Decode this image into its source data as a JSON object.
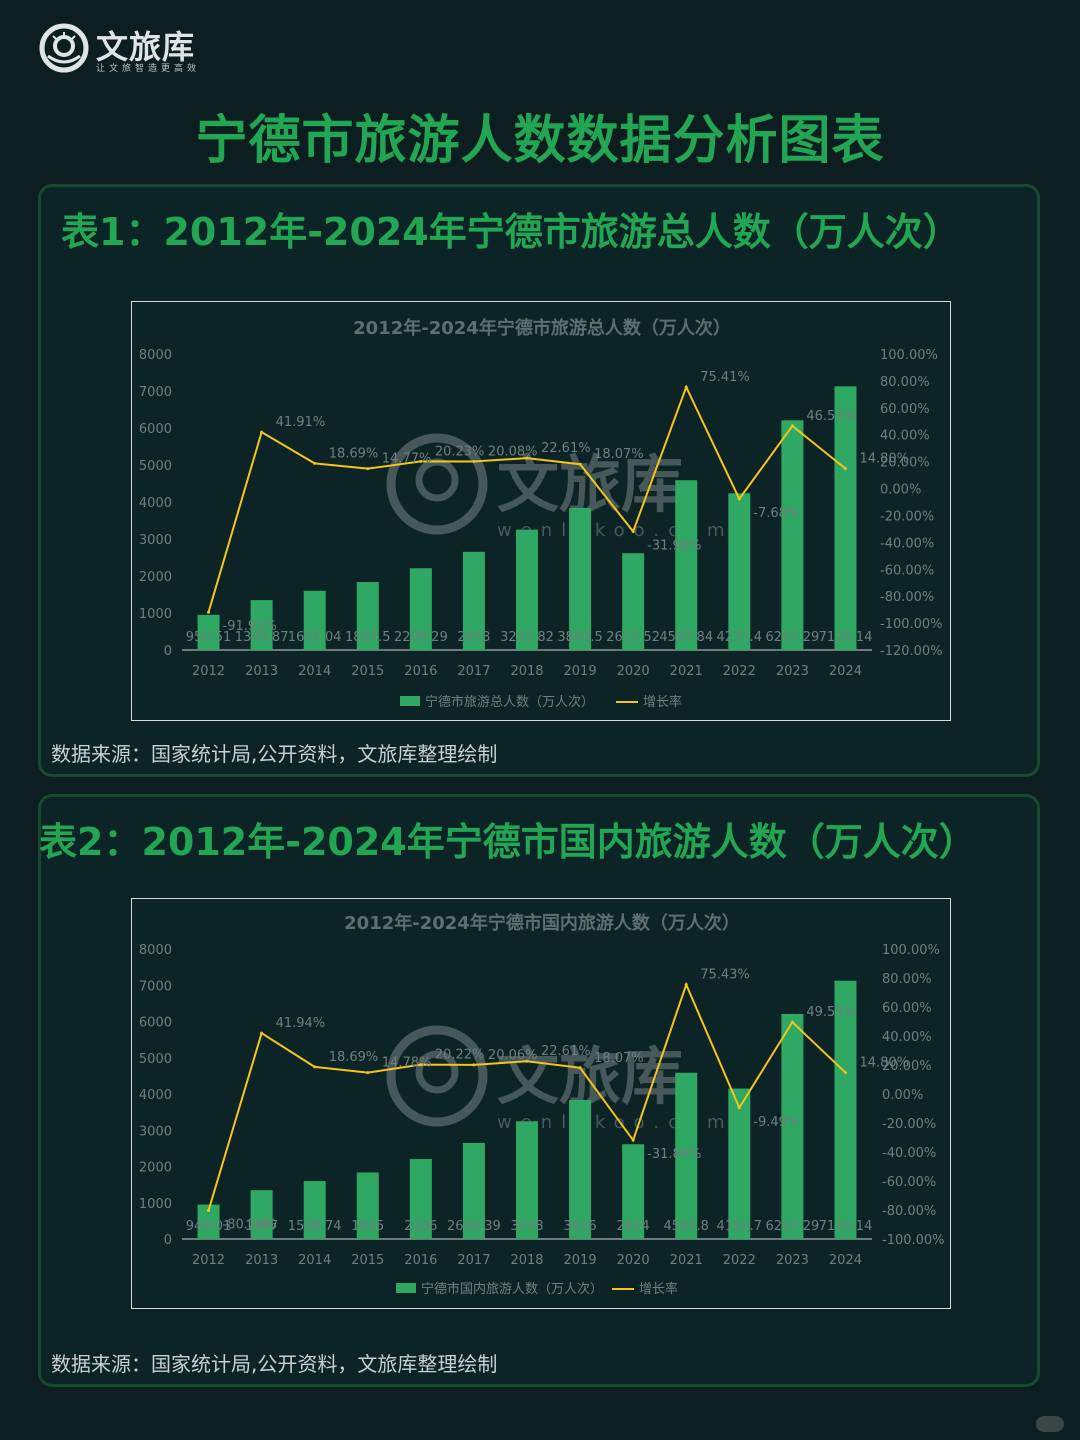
{
  "brand": {
    "name": "文旅库",
    "slogan": "让文旅智造更高效"
  },
  "page_title": "宁德市旅游人数数据分析图表",
  "colors": {
    "bar": "#2ea862",
    "line": "#f5c518",
    "heading": "#22a653",
    "panel_border": "#164a2f"
  },
  "panels": [
    {
      "heading": "表1：2012年-2024年宁德市旅游总人数（万人次）",
      "source": "数据来源：国家统计局,公开资料，文旅库整理绘制",
      "chart": {
        "title": "2012年-2024年宁德市旅游总人数（万人次）",
        "bar_legend": "宁德市旅游总人数（万人次）",
        "line_legend": "增长率",
        "watermark": "文旅库",
        "watermark_sub": "wenlvkoo.com",
        "y_ticks": [
          "8000",
          "7000",
          "6000",
          "5000",
          "4000",
          "3000",
          "2000",
          "1000",
          "0"
        ],
        "y2_ticks": [
          "100.00%",
          "80.00%",
          "60.00%",
          "40.00%",
          "20.00%",
          "0.00%",
          "-20.00%",
          "-40.00%",
          "-60.00%",
          "-80.00%",
          "-100.00%",
          "-120.00%"
        ]
      }
    },
    {
      "heading": "表2：2012年-2024年宁德市国内旅游人数（万人次）",
      "source": "数据来源：国家统计局,公开资料，文旅库整理绘制",
      "chart": {
        "title": "2012年-2024年宁德市国内旅游人数（万人次）",
        "bar_legend": "宁德市国内旅游人数（万人次）",
        "line_legend": "增长率",
        "watermark": "文旅库",
        "watermark_sub": "wenlvkoo.com",
        "y_ticks": [
          "8000",
          "7000",
          "6000",
          "5000",
          "4000",
          "3000",
          "2000",
          "1000",
          "0"
        ],
        "y2_ticks": [
          "100.00%",
          "80.00%",
          "60.00%",
          "40.00%",
          "20.00%",
          "0.00%",
          "-20.00%",
          "-40.00%",
          "-60.00%",
          "-80.00%",
          "-100.00%"
        ]
      }
    }
  ],
  "chart_data": [
    {
      "type": "bar",
      "title": "2012年-2024年宁德市旅游总人数（万人次）",
      "categories": [
        "2012",
        "2013",
        "2014",
        "2015",
        "2016",
        "2017",
        "2018",
        "2019",
        "2020",
        "2021",
        "2022",
        "2023",
        "2024"
      ],
      "series": [
        {
          "name": "宁德市旅游总人数（万人次）",
          "type": "bar",
          "axis": "left",
          "values": [
            950.51,
            1348.87,
            1601.04,
            1837.5,
            2209.29,
            2653,
            3252.82,
            3840.5,
            2615.52,
            4587.84,
            4235.4,
            6207.29,
            7126.14
          ],
          "labels": [
            "950.51",
            "1348.87",
            "1601.04",
            "1837.5",
            "2209.29",
            "2653",
            "3252.82",
            "3840.5",
            "2615.52",
            "4587.84",
            "4235.4",
            "6207.29",
            "7126.14"
          ]
        },
        {
          "name": "增长率",
          "type": "line",
          "axis": "right",
          "values": [
            -91.91,
            41.91,
            18.69,
            14.77,
            20.23,
            20.08,
            22.61,
            18.07,
            -31.9,
            75.41,
            -7.68,
            46.56,
            14.8
          ],
          "labels": [
            "-91.91%",
            "41.91%",
            "18.69%",
            "14.77%",
            "20.23%",
            "20.08%",
            "22.61%",
            "18.07%",
            "-31.90%",
            "75.41%",
            "-7.68%",
            "46.56%",
            "14.80%"
          ]
        }
      ],
      "ylim": [
        0,
        8000
      ],
      "y2lim": [
        -120,
        100
      ],
      "legend": "bottom"
    },
    {
      "type": "bar",
      "title": "2012年-2024年宁德市国内旅游人数（万人次）",
      "categories": [
        "2012",
        "2013",
        "2014",
        "2015",
        "2016",
        "2017",
        "2018",
        "2019",
        "2020",
        "2021",
        "2022",
        "2023",
        "2024"
      ],
      "series": [
        {
          "name": "宁德市国内旅游人数（万人次）",
          "type": "bar",
          "axis": "left",
          "values": [
            949.01,
            1347,
            1598.74,
            1835,
            2206,
            2648.39,
            3248,
            3836,
            2614,
            4585.8,
            4150.7,
            6207.29,
            7126.14
          ],
          "labels": [
            "949.01",
            "1347",
            "1598.74",
            "1835",
            "2206",
            "2648.39",
            "3248",
            "3836",
            "2614",
            "4585.8",
            "4150.7",
            "6207.29",
            "7126.14"
          ]
        },
        {
          "name": "增长率",
          "type": "line",
          "axis": "right",
          "values": [
            -80.29,
            41.94,
            18.69,
            14.78,
            20.22,
            20.06,
            22.61,
            18.07,
            -31.84,
            75.43,
            -9.49,
            49.55,
            14.8
          ],
          "labels": [
            "-80.29%",
            "41.94%",
            "18.69%",
            "14.78%",
            "20.22%",
            "20.06%",
            "22.61%",
            "18.07%",
            "-31.84%",
            "75.43%",
            "-9.49%",
            "49.55%",
            "14.80%"
          ]
        }
      ],
      "ylim": [
        0,
        8000
      ],
      "y2lim": [
        -100,
        100
      ],
      "legend": "bottom"
    }
  ]
}
